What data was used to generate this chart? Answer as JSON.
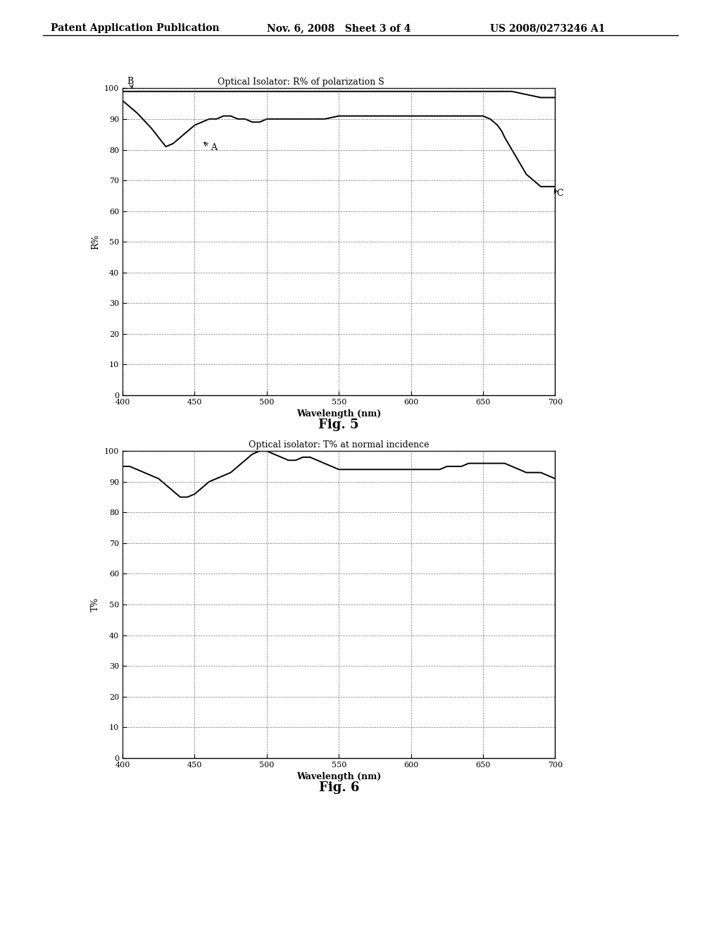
{
  "header_left": "Patent Application Publication",
  "header_mid": "Nov. 6, 2008   Sheet 3 of 4",
  "header_right": "US 2008/0273246 A1",
  "fig5_title": "Optical Isolator: R% of polarization S",
  "fig5_ylabel": "R%",
  "fig5_xlabel": "Wavelength (nm)",
  "fig5_label": "Fig. 5",
  "fig6_title": "Optical isolator: T% at normal incidence",
  "fig6_ylabel": "T%",
  "fig6_xlabel": "Wavelength (nm)",
  "fig6_label": "Fig. 6",
  "xlim": [
    400,
    700
  ],
  "ylim": [
    0,
    100
  ],
  "xticks": [
    400,
    450,
    500,
    550,
    600,
    650,
    700
  ],
  "yticks": [
    0,
    10,
    20,
    30,
    40,
    50,
    60,
    70,
    80,
    90,
    100
  ],
  "fig5_curveA_x": [
    400,
    410,
    420,
    425,
    430,
    435,
    440,
    445,
    450,
    455,
    460,
    465,
    470,
    475,
    480,
    485,
    490,
    495,
    500,
    510,
    520,
    530,
    540,
    550,
    560,
    570,
    580,
    590,
    600,
    610,
    620,
    630,
    640,
    650,
    655,
    660,
    663,
    665,
    670,
    675,
    680,
    685,
    690,
    695,
    700
  ],
  "fig5_curveA_y": [
    96,
    92,
    87,
    84,
    81,
    82,
    84,
    86,
    88,
    89,
    90,
    90,
    91,
    91,
    90,
    90,
    89,
    89,
    90,
    90,
    90,
    90,
    90,
    91,
    91,
    91,
    91,
    91,
    91,
    91,
    91,
    91,
    91,
    91,
    90,
    88,
    86,
    84,
    80,
    76,
    72,
    70,
    68,
    68,
    68
  ],
  "fig5_curveB_x": [
    400,
    410,
    420,
    430,
    440,
    450,
    460,
    470,
    480,
    490,
    500,
    520,
    540,
    560,
    580,
    600,
    620,
    640,
    660,
    670,
    680,
    690,
    700
  ],
  "fig5_curveB_y": [
    99,
    99,
    99,
    99,
    99,
    99,
    99,
    99,
    99,
    99,
    99,
    99,
    99,
    99,
    99,
    99,
    99,
    99,
    99,
    99,
    98,
    97,
    97
  ],
  "fig6_curve_x": [
    400,
    405,
    410,
    415,
    420,
    425,
    430,
    435,
    440,
    445,
    450,
    455,
    460,
    465,
    470,
    475,
    480,
    485,
    490,
    495,
    500,
    505,
    510,
    515,
    520,
    525,
    530,
    535,
    540,
    545,
    550,
    555,
    560,
    565,
    570,
    575,
    580,
    585,
    590,
    595,
    600,
    605,
    610,
    615,
    620,
    625,
    630,
    635,
    640,
    645,
    650,
    655,
    660,
    665,
    670,
    675,
    680,
    685,
    690,
    695,
    700
  ],
  "fig6_curve_y": [
    95,
    95,
    94,
    93,
    92,
    91,
    89,
    87,
    85,
    85,
    86,
    88,
    90,
    91,
    92,
    93,
    95,
    97,
    99,
    100,
    100,
    99,
    98,
    97,
    97,
    98,
    98,
    97,
    96,
    95,
    94,
    94,
    94,
    94,
    94,
    94,
    94,
    94,
    94,
    94,
    94,
    94,
    94,
    94,
    94,
    95,
    95,
    95,
    96,
    96,
    96,
    96,
    96,
    96,
    95,
    94,
    93,
    93,
    93,
    92,
    91
  ],
  "background_color": "#ffffff",
  "line_color": "#000000",
  "grid_color": "#555555"
}
